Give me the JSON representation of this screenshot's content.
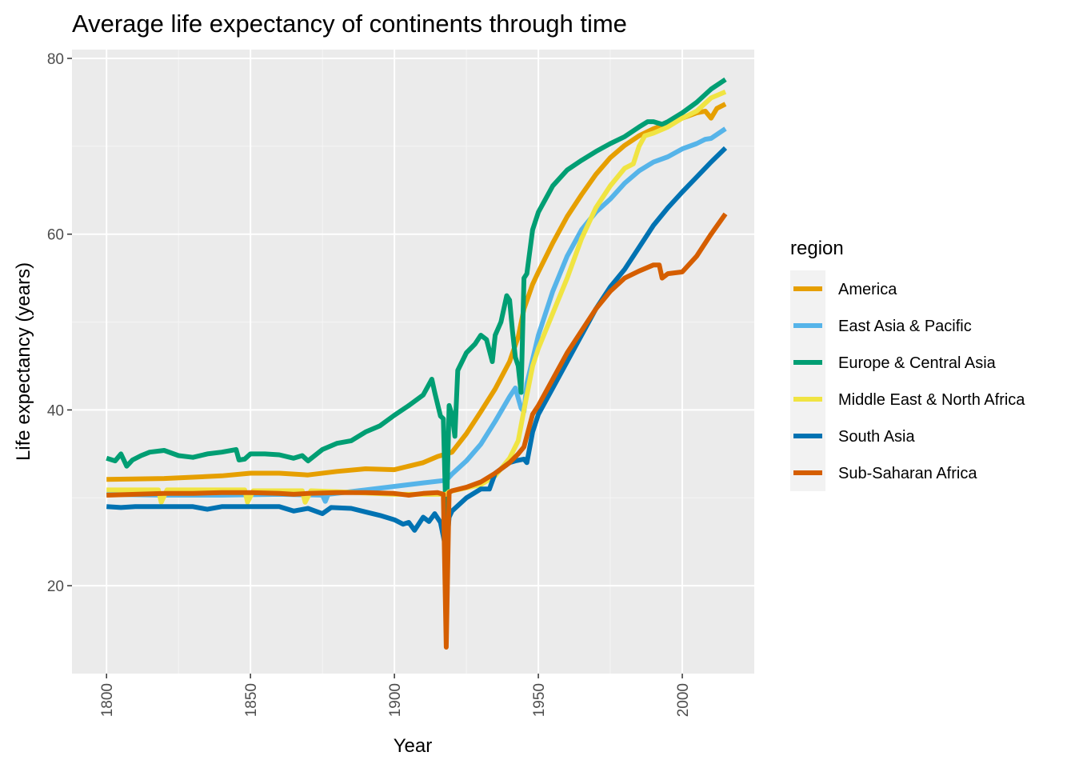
{
  "chart_data": {
    "type": "line",
    "title": "Average life expectancy of continents through time",
    "xlabel": "Year",
    "ylabel": "Life expectancy (years)",
    "xlim": [
      1788,
      2025
    ],
    "ylim": [
      10,
      81
    ],
    "x_ticks": [
      1800,
      1850,
      1900,
      1950,
      2000
    ],
    "x_tick_labels": [
      "1800",
      "1850",
      "1900",
      "1950",
      "2000"
    ],
    "y_ticks": [
      20,
      40,
      60,
      80
    ],
    "y_tick_labels": [
      "20",
      "40",
      "60",
      "80"
    ],
    "grid": true,
    "legend": {
      "title": "region",
      "position": "right"
    },
    "colors": {
      "panel_background": "#ebebeb",
      "grid_major": "#ffffff",
      "grid_minor": "#f5f5f5",
      "legend_key_background": "#f2f2f2"
    },
    "series": [
      {
        "name": "America",
        "color": "#E69F00",
        "points": [
          [
            1800,
            32.1
          ],
          [
            1820,
            32.2
          ],
          [
            1840,
            32.5
          ],
          [
            1850,
            32.8
          ],
          [
            1860,
            32.8
          ],
          [
            1870,
            32.6
          ],
          [
            1880,
            33.0
          ],
          [
            1890,
            33.3
          ],
          [
            1900,
            33.2
          ],
          [
            1905,
            33.6
          ],
          [
            1910,
            34.0
          ],
          [
            1915,
            34.7
          ],
          [
            1918,
            35.0
          ],
          [
            1920,
            35.2
          ],
          [
            1925,
            37.3
          ],
          [
            1930,
            39.8
          ],
          [
            1935,
            42.4
          ],
          [
            1940,
            45.5
          ],
          [
            1943,
            48.3
          ],
          [
            1945,
            51.5
          ],
          [
            1948,
            54.3
          ],
          [
            1950,
            55.7
          ],
          [
            1955,
            59.0
          ],
          [
            1960,
            62.0
          ],
          [
            1965,
            64.5
          ],
          [
            1970,
            66.8
          ],
          [
            1975,
            68.7
          ],
          [
            1980,
            70.1
          ],
          [
            1985,
            71.2
          ],
          [
            1990,
            72.0
          ],
          [
            1995,
            72.6
          ],
          [
            2000,
            73.2
          ],
          [
            2005,
            73.8
          ],
          [
            2008,
            74.0
          ],
          [
            2010,
            73.2
          ],
          [
            2012,
            74.3
          ],
          [
            2015,
            74.8
          ]
        ]
      },
      {
        "name": "East Asia & Pacific",
        "color": "#56B4E9",
        "points": [
          [
            1800,
            30.4
          ],
          [
            1820,
            30.3
          ],
          [
            1840,
            30.3
          ],
          [
            1860,
            30.4
          ],
          [
            1875,
            30.3
          ],
          [
            1876,
            29.6
          ],
          [
            1877,
            30.4
          ],
          [
            1890,
            30.9
          ],
          [
            1900,
            31.3
          ],
          [
            1910,
            31.7
          ],
          [
            1918,
            32.0
          ],
          [
            1920,
            32.7
          ],
          [
            1925,
            34.2
          ],
          [
            1930,
            36.1
          ],
          [
            1935,
            38.7
          ],
          [
            1940,
            41.5
          ],
          [
            1942,
            42.5
          ],
          [
            1944,
            40.2
          ],
          [
            1945,
            39.8
          ],
          [
            1946,
            43.0
          ],
          [
            1950,
            48.5
          ],
          [
            1955,
            53.5
          ],
          [
            1960,
            57.5
          ],
          [
            1965,
            60.5
          ],
          [
            1970,
            62.5
          ],
          [
            1975,
            64.0
          ],
          [
            1980,
            65.8
          ],
          [
            1985,
            67.2
          ],
          [
            1990,
            68.2
          ],
          [
            1995,
            68.8
          ],
          [
            2000,
            69.7
          ],
          [
            2005,
            70.3
          ],
          [
            2008,
            70.8
          ],
          [
            2010,
            70.9
          ],
          [
            2015,
            72.0
          ]
        ]
      },
      {
        "name": "Europe & Central Asia",
        "color": "#009E73",
        "points": [
          [
            1800,
            34.5
          ],
          [
            1803,
            34.2
          ],
          [
            1805,
            35.0
          ],
          [
            1807,
            33.6
          ],
          [
            1809,
            34.3
          ],
          [
            1812,
            34.8
          ],
          [
            1815,
            35.2
          ],
          [
            1820,
            35.4
          ],
          [
            1825,
            34.8
          ],
          [
            1830,
            34.6
          ],
          [
            1835,
            35.0
          ],
          [
            1840,
            35.2
          ],
          [
            1845,
            35.5
          ],
          [
            1846,
            34.3
          ],
          [
            1848,
            34.4
          ],
          [
            1850,
            35.0
          ],
          [
            1855,
            35.0
          ],
          [
            1860,
            34.9
          ],
          [
            1865,
            34.5
          ],
          [
            1868,
            34.8
          ],
          [
            1870,
            34.2
          ],
          [
            1875,
            35.5
          ],
          [
            1880,
            36.2
          ],
          [
            1885,
            36.5
          ],
          [
            1890,
            37.5
          ],
          [
            1895,
            38.2
          ],
          [
            1900,
            39.4
          ],
          [
            1905,
            40.5
          ],
          [
            1910,
            41.7
          ],
          [
            1913,
            43.5
          ],
          [
            1914,
            42.0
          ],
          [
            1916,
            39.3
          ],
          [
            1917,
            39.0
          ],
          [
            1918,
            26.5
          ],
          [
            1919,
            40.5
          ],
          [
            1920,
            39.5
          ],
          [
            1921,
            37.0
          ],
          [
            1922,
            44.5
          ],
          [
            1925,
            46.5
          ],
          [
            1928,
            47.5
          ],
          [
            1930,
            48.5
          ],
          [
            1932,
            48.0
          ],
          [
            1934,
            45.5
          ],
          [
            1935,
            48.5
          ],
          [
            1937,
            50.0
          ],
          [
            1939,
            53.0
          ],
          [
            1940,
            52.5
          ],
          [
            1941,
            49.0
          ],
          [
            1942,
            46.0
          ],
          [
            1943,
            45.0
          ],
          [
            1944,
            42.0
          ],
          [
            1945,
            55.0
          ],
          [
            1946,
            55.5
          ],
          [
            1948,
            60.5
          ],
          [
            1950,
            62.5
          ],
          [
            1955,
            65.5
          ],
          [
            1960,
            67.3
          ],
          [
            1965,
            68.4
          ],
          [
            1970,
            69.4
          ],
          [
            1975,
            70.3
          ],
          [
            1980,
            71.1
          ],
          [
            1985,
            72.2
          ],
          [
            1988,
            72.8
          ],
          [
            1990,
            72.8
          ],
          [
            1993,
            72.5
          ],
          [
            1995,
            72.8
          ],
          [
            2000,
            73.8
          ],
          [
            2005,
            75.0
          ],
          [
            2010,
            76.5
          ],
          [
            2015,
            77.6
          ]
        ]
      },
      {
        "name": "Middle East & North Africa",
        "color": "#F0E442",
        "points": [
          [
            1800,
            30.9
          ],
          [
            1810,
            30.9
          ],
          [
            1818,
            30.9
          ],
          [
            1819,
            29.5
          ],
          [
            1821,
            30.9
          ],
          [
            1840,
            30.9
          ],
          [
            1848,
            30.9
          ],
          [
            1849,
            29.5
          ],
          [
            1851,
            30.8
          ],
          [
            1868,
            30.8
          ],
          [
            1869,
            29.5
          ],
          [
            1871,
            30.8
          ],
          [
            1880,
            30.7
          ],
          [
            1900,
            30.4
          ],
          [
            1918,
            30.4
          ],
          [
            1919,
            30.7
          ],
          [
            1930,
            31.5
          ],
          [
            1935,
            32.5
          ],
          [
            1940,
            34.5
          ],
          [
            1943,
            36.5
          ],
          [
            1945,
            40.0
          ],
          [
            1948,
            45.0
          ],
          [
            1950,
            47.0
          ],
          [
            1955,
            51.0
          ],
          [
            1960,
            55.0
          ],
          [
            1965,
            59.5
          ],
          [
            1970,
            63.0
          ],
          [
            1975,
            65.5
          ],
          [
            1980,
            67.5
          ],
          [
            1983,
            68.0
          ],
          [
            1985,
            70.0
          ],
          [
            1987,
            71.2
          ],
          [
            1990,
            71.5
          ],
          [
            1995,
            72.2
          ],
          [
            2000,
            73.2
          ],
          [
            2005,
            74.0
          ],
          [
            2010,
            75.5
          ],
          [
            2015,
            76.2
          ]
        ]
      },
      {
        "name": "South Asia",
        "color": "#0072B2",
        "points": [
          [
            1800,
            29.0
          ],
          [
            1805,
            28.9
          ],
          [
            1810,
            29.0
          ],
          [
            1815,
            29.0
          ],
          [
            1820,
            29.0
          ],
          [
            1830,
            29.0
          ],
          [
            1835,
            28.7
          ],
          [
            1840,
            29.0
          ],
          [
            1850,
            29.0
          ],
          [
            1860,
            29.0
          ],
          [
            1865,
            28.5
          ],
          [
            1870,
            28.8
          ],
          [
            1875,
            28.2
          ],
          [
            1878,
            28.9
          ],
          [
            1885,
            28.8
          ],
          [
            1890,
            28.4
          ],
          [
            1895,
            28.0
          ],
          [
            1900,
            27.5
          ],
          [
            1903,
            27.0
          ],
          [
            1905,
            27.2
          ],
          [
            1907,
            26.3
          ],
          [
            1910,
            27.8
          ],
          [
            1912,
            27.3
          ],
          [
            1914,
            28.2
          ],
          [
            1916,
            27.2
          ],
          [
            1918,
            24.0
          ],
          [
            1919,
            27.8
          ],
          [
            1920,
            28.5
          ],
          [
            1925,
            30.0
          ],
          [
            1930,
            31.0
          ],
          [
            1933,
            31.0
          ],
          [
            1935,
            32.8
          ],
          [
            1940,
            34.0
          ],
          [
            1942,
            34.2
          ],
          [
            1945,
            34.4
          ],
          [
            1946,
            34.0
          ],
          [
            1948,
            37.5
          ],
          [
            1950,
            39.5
          ],
          [
            1955,
            42.5
          ],
          [
            1960,
            45.5
          ],
          [
            1965,
            48.5
          ],
          [
            1970,
            51.5
          ],
          [
            1975,
            54.0
          ],
          [
            1980,
            56.0
          ],
          [
            1985,
            58.5
          ],
          [
            1990,
            61.0
          ],
          [
            1995,
            63.0
          ],
          [
            2000,
            64.8
          ],
          [
            2005,
            66.5
          ],
          [
            2010,
            68.2
          ],
          [
            2015,
            69.8
          ]
        ]
      },
      {
        "name": "Sub-Saharan Africa",
        "color": "#D55E00",
        "points": [
          [
            1800,
            30.3
          ],
          [
            1810,
            30.4
          ],
          [
            1820,
            30.5
          ],
          [
            1830,
            30.5
          ],
          [
            1840,
            30.6
          ],
          [
            1850,
            30.6
          ],
          [
            1860,
            30.5
          ],
          [
            1865,
            30.4
          ],
          [
            1870,
            30.5
          ],
          [
            1880,
            30.6
          ],
          [
            1890,
            30.6
          ],
          [
            1900,
            30.5
          ],
          [
            1905,
            30.3
          ],
          [
            1910,
            30.5
          ],
          [
            1915,
            30.6
          ],
          [
            1917,
            30.4
          ],
          [
            1918,
            13.0
          ],
          [
            1919,
            30.6
          ],
          [
            1920,
            30.8
          ],
          [
            1925,
            31.2
          ],
          [
            1930,
            31.8
          ],
          [
            1935,
            32.8
          ],
          [
            1940,
            34.0
          ],
          [
            1943,
            35.0
          ],
          [
            1945,
            35.8
          ],
          [
            1948,
            39.5
          ],
          [
            1950,
            40.5
          ],
          [
            1955,
            43.5
          ],
          [
            1960,
            46.5
          ],
          [
            1965,
            49.0
          ],
          [
            1970,
            51.5
          ],
          [
            1975,
            53.5
          ],
          [
            1980,
            55.0
          ],
          [
            1985,
            55.8
          ],
          [
            1990,
            56.5
          ],
          [
            1992,
            56.5
          ],
          [
            1993,
            55.0
          ],
          [
            1995,
            55.5
          ],
          [
            2000,
            55.7
          ],
          [
            2005,
            57.5
          ],
          [
            2010,
            60.0
          ],
          [
            2015,
            62.3
          ]
        ]
      }
    ]
  }
}
